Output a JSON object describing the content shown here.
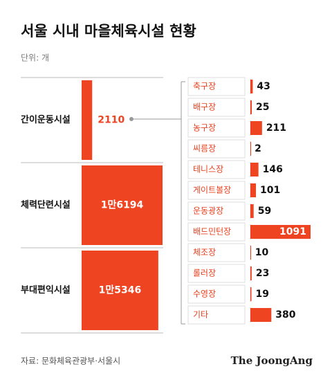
{
  "chart_data": [
    {
      "type": "bar",
      "title": "서울 시내 마을체육시설 현황",
      "subtitle": "단위: 개",
      "categories": [
        "간이운동시설",
        "체력단련시설",
        "부대편익시설"
      ],
      "values": [
        2110,
        16194,
        15346
      ],
      "value_labels": [
        "2110",
        "1만6194",
        "1만5346"
      ],
      "color": "#ee4422",
      "source": "자료: 문화체육관광부·서울시",
      "credit": "The JoongAng"
    },
    {
      "type": "bar",
      "categories": [
        "축구장",
        "배구장",
        "농구장",
        "씨름장",
        "테니스장",
        "게이트볼장",
        "운동광장",
        "배드민턴장",
        "체조장",
        "롤러장",
        "수영장",
        "기타"
      ],
      "values": [
        43,
        25,
        211,
        2,
        146,
        101,
        59,
        1091,
        10,
        23,
        19,
        380
      ],
      "color": "#ee4422"
    }
  ]
}
